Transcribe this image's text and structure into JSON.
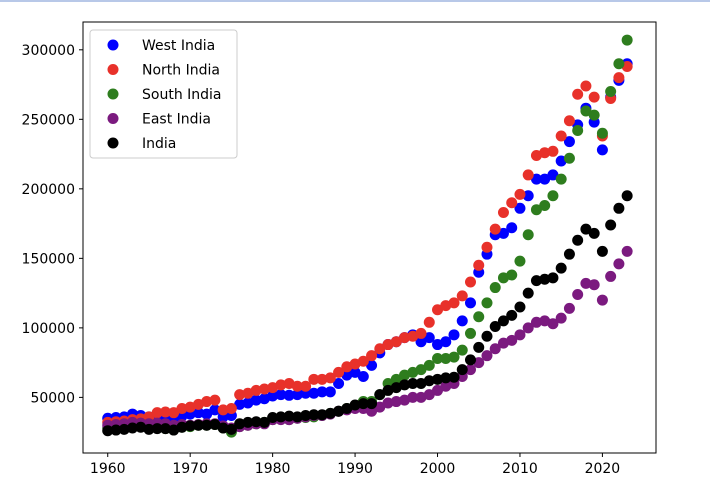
{
  "chart_data": {
    "type": "scatter",
    "title": "",
    "xlabel": "",
    "ylabel": "",
    "xlim": [
      1957,
      2026.5
    ],
    "ylim": [
      10000,
      320000
    ],
    "xticks": [
      1960,
      1970,
      1980,
      1990,
      2000,
      2010,
      2020
    ],
    "yticks": [
      50000,
      100000,
      150000,
      200000,
      250000,
      300000
    ],
    "xtick_labels": [
      "1960",
      "1970",
      "1980",
      "1990",
      "2000",
      "2010",
      "2020"
    ],
    "ytick_labels": [
      "50000",
      "100000",
      "150000",
      "200000",
      "250000",
      "300000"
    ],
    "legend_position": "top-left",
    "x_start": 1960,
    "series": [
      {
        "name": "West India",
        "color": "#0000ff",
        "values": [
          35000,
          35500,
          36000,
          38000,
          37000,
          36000,
          36000,
          35500,
          35000,
          36500,
          38000,
          39000,
          38000,
          41000,
          36000,
          37000,
          45000,
          46000,
          48000,
          49000,
          51000,
          52000,
          51500,
          52000,
          53000,
          53000,
          54000,
          54000,
          60000,
          66000,
          68000,
          65000,
          73000,
          82000,
          88000,
          90000,
          93000,
          95000,
          90000,
          93000,
          88000,
          90000,
          95000,
          105000,
          118000,
          140000,
          153000,
          167000,
          168000,
          172000,
          186000,
          195000,
          207000,
          207000,
          210000,
          220000,
          234000,
          246000,
          258000,
          248000,
          228000,
          266000,
          278000,
          290000
        ]
      },
      {
        "name": "North India",
        "color": "#e8312a",
        "values": [
          32000,
          32500,
          33000,
          34000,
          34500,
          36000,
          39000,
          39500,
          39000,
          42000,
          43000,
          45000,
          47000,
          48000,
          41000,
          42000,
          52000,
          53000,
          55000,
          56000,
          57000,
          59000,
          60000,
          58000,
          58000,
          63000,
          63000,
          64000,
          68000,
          72000,
          74000,
          76000,
          80000,
          85000,
          88000,
          90000,
          93000,
          94000,
          96000,
          104000,
          113000,
          116000,
          118000,
          123000,
          133000,
          145000,
          158000,
          171000,
          183000,
          190000,
          196000,
          210000,
          224000,
          226000,
          227000,
          238000,
          249000,
          268000,
          274000,
          266000,
          238000,
          265000,
          280000,
          288000
        ]
      },
      {
        "name": "South India",
        "color": "#2e7d1e",
        "values": [
          28000,
          28000,
          28500,
          29000,
          29000,
          28000,
          28000,
          27500,
          27000,
          28500,
          29000,
          30000,
          30000,
          30500,
          28000,
          25000,
          29000,
          30000,
          31000,
          32000,
          34000,
          34500,
          34000,
          35000,
          35500,
          36000,
          37000,
          38500,
          40000,
          42000,
          44000,
          47000,
          47000,
          52000,
          60000,
          63000,
          66000,
          68000,
          70000,
          73000,
          78000,
          78000,
          79000,
          84000,
          96000,
          108000,
          118000,
          129000,
          136000,
          138000,
          148000,
          167000,
          185000,
          188000,
          195000,
          207000,
          222000,
          242000,
          256000,
          253000,
          240000,
          270000,
          290000,
          307000
        ]
      },
      {
        "name": "East India",
        "color": "#7b1a7f",
        "values": [
          30000,
          30500,
          31000,
          32000,
          31500,
          31000,
          31500,
          31000,
          30000,
          30500,
          30000,
          30500,
          31000,
          31000,
          29500,
          28000,
          29000,
          30000,
          31000,
          31000,
          34000,
          34000,
          34000,
          35000,
          36000,
          37000,
          37000,
          38000,
          40000,
          41000,
          42000,
          42000,
          40000,
          43000,
          46000,
          47000,
          48000,
          50000,
          50000,
          52000,
          55000,
          58000,
          60000,
          65000,
          70000,
          75000,
          80000,
          85000,
          89000,
          91000,
          95000,
          100000,
          104000,
          105000,
          103000,
          107000,
          114000,
          124000,
          132000,
          131000,
          120000,
          137000,
          146000,
          155000
        ]
      },
      {
        "name": "India",
        "color": "#000000",
        "values": [
          26000,
          26500,
          27000,
          28000,
          28500,
          27000,
          27500,
          27500,
          26500,
          28500,
          29500,
          30000,
          30000,
          30500,
          28000,
          27000,
          31000,
          32000,
          32500,
          32000,
          35500,
          36000,
          36500,
          36000,
          37000,
          37500,
          37500,
          38500,
          40000,
          42000,
          44500,
          45500,
          45500,
          52000,
          55000,
          57000,
          59000,
          60000,
          60000,
          62000,
          63000,
          64000,
          64500,
          70000,
          77000,
          86000,
          94000,
          101000,
          105000,
          109000,
          115000,
          125000,
          134000,
          135000,
          136000,
          143000,
          153000,
          163000,
          171000,
          168000,
          155000,
          174000,
          186000,
          195000
        ]
      }
    ]
  }
}
